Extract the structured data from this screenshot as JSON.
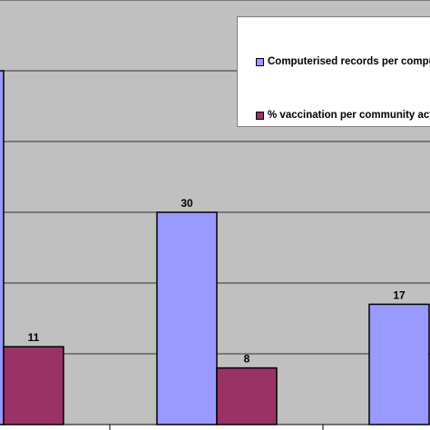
{
  "chart_data": {
    "type": "bar",
    "categories": [
      "",
      "",
      ""
    ],
    "series": [
      {
        "name": "Computerised records per computer",
        "color": "#9999ff",
        "values": [
          50,
          30,
          17
        ]
      },
      {
        "name": "% vaccination per community activity",
        "color": "#993366",
        "values": [
          11,
          8,
          null
        ]
      }
    ],
    "data_labels": [
      [
        "",
        "30",
        "17"
      ],
      [
        "11",
        "8",
        ""
      ]
    ],
    "ylim": [
      0,
      60
    ],
    "grid": true,
    "plot_background": "#c0c0c0",
    "legend_position": "top-right",
    "title": "",
    "xlabel": "",
    "ylabel": ""
  }
}
